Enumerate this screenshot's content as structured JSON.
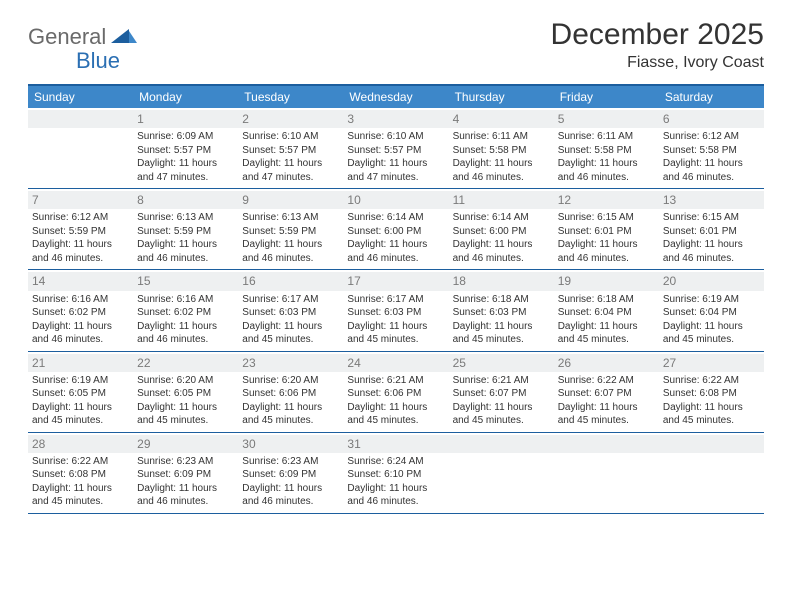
{
  "brand": {
    "general": "General",
    "blue": "Blue"
  },
  "title": "December 2025",
  "location": "Fiasse, Ivory Coast",
  "colors": {
    "header_bg": "#3d87c9",
    "border": "#1c5e9e",
    "daynum_bg": "#eef0f1",
    "daynum_color": "#7a7a7a",
    "text": "#333333"
  },
  "weekdays": [
    "Sunday",
    "Monday",
    "Tuesday",
    "Wednesday",
    "Thursday",
    "Friday",
    "Saturday"
  ],
  "weeks": [
    [
      {
        "n": "",
        "sr": "",
        "ss": "",
        "dl": ""
      },
      {
        "n": "1",
        "sr": "Sunrise: 6:09 AM",
        "ss": "Sunset: 5:57 PM",
        "dl": "Daylight: 11 hours and 47 minutes."
      },
      {
        "n": "2",
        "sr": "Sunrise: 6:10 AM",
        "ss": "Sunset: 5:57 PM",
        "dl": "Daylight: 11 hours and 47 minutes."
      },
      {
        "n": "3",
        "sr": "Sunrise: 6:10 AM",
        "ss": "Sunset: 5:57 PM",
        "dl": "Daylight: 11 hours and 47 minutes."
      },
      {
        "n": "4",
        "sr": "Sunrise: 6:11 AM",
        "ss": "Sunset: 5:58 PM",
        "dl": "Daylight: 11 hours and 46 minutes."
      },
      {
        "n": "5",
        "sr": "Sunrise: 6:11 AM",
        "ss": "Sunset: 5:58 PM",
        "dl": "Daylight: 11 hours and 46 minutes."
      },
      {
        "n": "6",
        "sr": "Sunrise: 6:12 AM",
        "ss": "Sunset: 5:58 PM",
        "dl": "Daylight: 11 hours and 46 minutes."
      }
    ],
    [
      {
        "n": "7",
        "sr": "Sunrise: 6:12 AM",
        "ss": "Sunset: 5:59 PM",
        "dl": "Daylight: 11 hours and 46 minutes."
      },
      {
        "n": "8",
        "sr": "Sunrise: 6:13 AM",
        "ss": "Sunset: 5:59 PM",
        "dl": "Daylight: 11 hours and 46 minutes."
      },
      {
        "n": "9",
        "sr": "Sunrise: 6:13 AM",
        "ss": "Sunset: 5:59 PM",
        "dl": "Daylight: 11 hours and 46 minutes."
      },
      {
        "n": "10",
        "sr": "Sunrise: 6:14 AM",
        "ss": "Sunset: 6:00 PM",
        "dl": "Daylight: 11 hours and 46 minutes."
      },
      {
        "n": "11",
        "sr": "Sunrise: 6:14 AM",
        "ss": "Sunset: 6:00 PM",
        "dl": "Daylight: 11 hours and 46 minutes."
      },
      {
        "n": "12",
        "sr": "Sunrise: 6:15 AM",
        "ss": "Sunset: 6:01 PM",
        "dl": "Daylight: 11 hours and 46 minutes."
      },
      {
        "n": "13",
        "sr": "Sunrise: 6:15 AM",
        "ss": "Sunset: 6:01 PM",
        "dl": "Daylight: 11 hours and 46 minutes."
      }
    ],
    [
      {
        "n": "14",
        "sr": "Sunrise: 6:16 AM",
        "ss": "Sunset: 6:02 PM",
        "dl": "Daylight: 11 hours and 46 minutes."
      },
      {
        "n": "15",
        "sr": "Sunrise: 6:16 AM",
        "ss": "Sunset: 6:02 PM",
        "dl": "Daylight: 11 hours and 46 minutes."
      },
      {
        "n": "16",
        "sr": "Sunrise: 6:17 AM",
        "ss": "Sunset: 6:03 PM",
        "dl": "Daylight: 11 hours and 45 minutes."
      },
      {
        "n": "17",
        "sr": "Sunrise: 6:17 AM",
        "ss": "Sunset: 6:03 PM",
        "dl": "Daylight: 11 hours and 45 minutes."
      },
      {
        "n": "18",
        "sr": "Sunrise: 6:18 AM",
        "ss": "Sunset: 6:03 PM",
        "dl": "Daylight: 11 hours and 45 minutes."
      },
      {
        "n": "19",
        "sr": "Sunrise: 6:18 AM",
        "ss": "Sunset: 6:04 PM",
        "dl": "Daylight: 11 hours and 45 minutes."
      },
      {
        "n": "20",
        "sr": "Sunrise: 6:19 AM",
        "ss": "Sunset: 6:04 PM",
        "dl": "Daylight: 11 hours and 45 minutes."
      }
    ],
    [
      {
        "n": "21",
        "sr": "Sunrise: 6:19 AM",
        "ss": "Sunset: 6:05 PM",
        "dl": "Daylight: 11 hours and 45 minutes."
      },
      {
        "n": "22",
        "sr": "Sunrise: 6:20 AM",
        "ss": "Sunset: 6:05 PM",
        "dl": "Daylight: 11 hours and 45 minutes."
      },
      {
        "n": "23",
        "sr": "Sunrise: 6:20 AM",
        "ss": "Sunset: 6:06 PM",
        "dl": "Daylight: 11 hours and 45 minutes."
      },
      {
        "n": "24",
        "sr": "Sunrise: 6:21 AM",
        "ss": "Sunset: 6:06 PM",
        "dl": "Daylight: 11 hours and 45 minutes."
      },
      {
        "n": "25",
        "sr": "Sunrise: 6:21 AM",
        "ss": "Sunset: 6:07 PM",
        "dl": "Daylight: 11 hours and 45 minutes."
      },
      {
        "n": "26",
        "sr": "Sunrise: 6:22 AM",
        "ss": "Sunset: 6:07 PM",
        "dl": "Daylight: 11 hours and 45 minutes."
      },
      {
        "n": "27",
        "sr": "Sunrise: 6:22 AM",
        "ss": "Sunset: 6:08 PM",
        "dl": "Daylight: 11 hours and 45 minutes."
      }
    ],
    [
      {
        "n": "28",
        "sr": "Sunrise: 6:22 AM",
        "ss": "Sunset: 6:08 PM",
        "dl": "Daylight: 11 hours and 45 minutes."
      },
      {
        "n": "29",
        "sr": "Sunrise: 6:23 AM",
        "ss": "Sunset: 6:09 PM",
        "dl": "Daylight: 11 hours and 46 minutes."
      },
      {
        "n": "30",
        "sr": "Sunrise: 6:23 AM",
        "ss": "Sunset: 6:09 PM",
        "dl": "Daylight: 11 hours and 46 minutes."
      },
      {
        "n": "31",
        "sr": "Sunrise: 6:24 AM",
        "ss": "Sunset: 6:10 PM",
        "dl": "Daylight: 11 hours and 46 minutes."
      },
      {
        "n": "",
        "sr": "",
        "ss": "",
        "dl": ""
      },
      {
        "n": "",
        "sr": "",
        "ss": "",
        "dl": ""
      },
      {
        "n": "",
        "sr": "",
        "ss": "",
        "dl": ""
      }
    ]
  ]
}
